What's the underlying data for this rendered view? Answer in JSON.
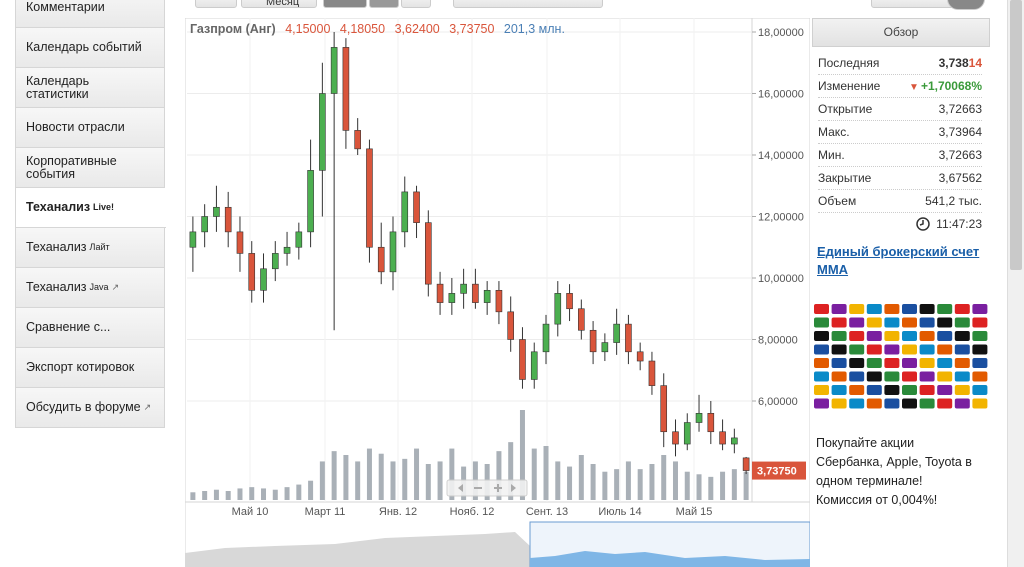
{
  "toolbar": {
    "period": "Месяц"
  },
  "menu": {
    "items": [
      {
        "label": "Комментарии"
      },
      {
        "label": "Календарь событий"
      },
      {
        "label": "Календарь статистики"
      },
      {
        "label": "Новости отрасли"
      },
      {
        "label": "Корпоративные события"
      },
      {
        "label": "Теханализ",
        "sup": "Live!",
        "active": true
      },
      {
        "label": "Теханализ",
        "sup": "Лайт"
      },
      {
        "label": "Теханализ",
        "sup": "Java",
        "external": true
      },
      {
        "label": "Сравнение с..."
      },
      {
        "label": "Экспорт котировок"
      },
      {
        "label": "Обсудить в форуме",
        "external": true
      }
    ]
  },
  "header": {
    "name": "Газпром (Анг)",
    "open": "4,15000",
    "high": "4,18050",
    "low": "3,62400",
    "close": "3,73750",
    "volume": "201,3 млн."
  },
  "chart_data": {
    "type": "candlestick",
    "up_color": "#4caf50",
    "down_color": "#d9553b",
    "volume_color": "#a9b0b7",
    "ylim": [
      3.4,
      18.4
    ],
    "yticks": [
      {
        "value": 6,
        "label": "6,00000"
      },
      {
        "value": 8,
        "label": "8,00000"
      },
      {
        "value": 10,
        "label": "10,00000"
      },
      {
        "value": 12,
        "label": "12,00000"
      },
      {
        "value": 14,
        "label": "14,00000"
      },
      {
        "value": 16,
        "label": "16,00000"
      },
      {
        "value": 18,
        "label": "18,00000"
      }
    ],
    "xlabels": [
      "Май 10",
      "Март 11",
      "Янв. 12",
      "Нояб. 12",
      "Сент. 13",
      "Июль 14",
      "Май 15"
    ],
    "open": [
      11.0,
      11.5,
      12.0,
      12.3,
      11.5,
      10.8,
      9.6,
      10.3,
      10.8,
      11.0,
      11.5,
      13.5,
      16.0,
      17.5,
      14.8,
      14.2,
      11.0,
      10.2,
      11.5,
      12.8,
      11.8,
      9.8,
      9.2,
      9.5,
      9.8,
      9.2,
      9.6,
      8.9,
      8.0,
      6.7,
      7.6,
      8.5,
      9.5,
      9.0,
      8.3,
      7.6,
      7.9,
      8.5,
      7.6,
      7.3,
      6.5,
      5.0,
      4.6,
      5.3,
      5.6,
      5.0,
      4.6,
      4.15
    ],
    "high": [
      12.0,
      12.4,
      13.0,
      12.8,
      12.0,
      11.2,
      10.8,
      11.2,
      11.5,
      11.8,
      14.5,
      17.0,
      18.0,
      17.8,
      15.2,
      14.5,
      11.8,
      12.0,
      13.3,
      13.0,
      12.2,
      10.2,
      10.0,
      10.3,
      10.3,
      9.9,
      9.9,
      9.4,
      8.4,
      7.9,
      8.8,
      9.9,
      9.8,
      9.3,
      8.6,
      8.2,
      9.0,
      8.8,
      7.9,
      7.6,
      6.9,
      5.4,
      5.6,
      6.2,
      6.0,
      5.4,
      5.1,
      4.1805
    ],
    "low": [
      10.2,
      11.0,
      11.5,
      11.0,
      10.2,
      9.2,
      9.2,
      9.9,
      10.4,
      10.6,
      11.0,
      12.0,
      8.3,
      14.2,
      14.0,
      10.5,
      9.8,
      9.6,
      11.0,
      11.3,
      9.4,
      8.8,
      8.8,
      9.0,
      9.0,
      8.8,
      8.5,
      7.6,
      6.4,
      6.4,
      7.2,
      8.1,
      8.6,
      8.0,
      7.2,
      7.3,
      7.5,
      7.2,
      7.0,
      6.2,
      4.5,
      4.2,
      4.4,
      5.0,
      4.6,
      4.4,
      4.3,
      3.624
    ],
    "close": [
      11.5,
      12.0,
      12.3,
      11.5,
      10.8,
      9.6,
      10.3,
      10.8,
      11.0,
      11.5,
      13.5,
      16.0,
      17.5,
      14.8,
      14.2,
      11.0,
      10.2,
      11.5,
      12.8,
      11.8,
      9.8,
      9.2,
      9.5,
      9.8,
      9.2,
      9.6,
      8.9,
      8.0,
      6.7,
      7.6,
      8.5,
      9.5,
      9.0,
      8.3,
      7.6,
      7.9,
      8.5,
      7.6,
      7.3,
      6.5,
      5.0,
      4.6,
      5.3,
      5.6,
      5.0,
      4.6,
      4.8,
      3.7375
    ],
    "volume": [
      6,
      7,
      8,
      7,
      9,
      10,
      9,
      8,
      10,
      12,
      15,
      30,
      38,
      35,
      30,
      40,
      36,
      30,
      32,
      40,
      28,
      30,
      40,
      26,
      30,
      28,
      38,
      45,
      70,
      40,
      42,
      30,
      26,
      35,
      28,
      22,
      24,
      30,
      24,
      28,
      35,
      30,
      22,
      20,
      18,
      22,
      24,
      22
    ],
    "last_price": {
      "value": 3.7375,
      "label": "3,73750"
    }
  },
  "overview": {
    "title": "Обзор",
    "rows": [
      {
        "label": "Последняя",
        "value": "3,738",
        "value_tail": "14"
      },
      {
        "label": "Изменение",
        "arrow": "▼",
        "value": "+1,70068%"
      },
      {
        "label": "Открытие",
        "value": "3,72663"
      },
      {
        "label": "Макс.",
        "value": "3,73964"
      },
      {
        "label": "Мин.",
        "value": "3,72663"
      },
      {
        "label": "Закрытие",
        "value": "3,67562"
      },
      {
        "label": "Объем",
        "value": "541,2 тыс."
      }
    ],
    "time": "11:47:23"
  },
  "promo": {
    "link": "Единый брокерский счет ММА",
    "text": "Покупайте акции Сбербанка, Apple, Toyota в одном терминале! Комиссия от 0,004%!"
  }
}
